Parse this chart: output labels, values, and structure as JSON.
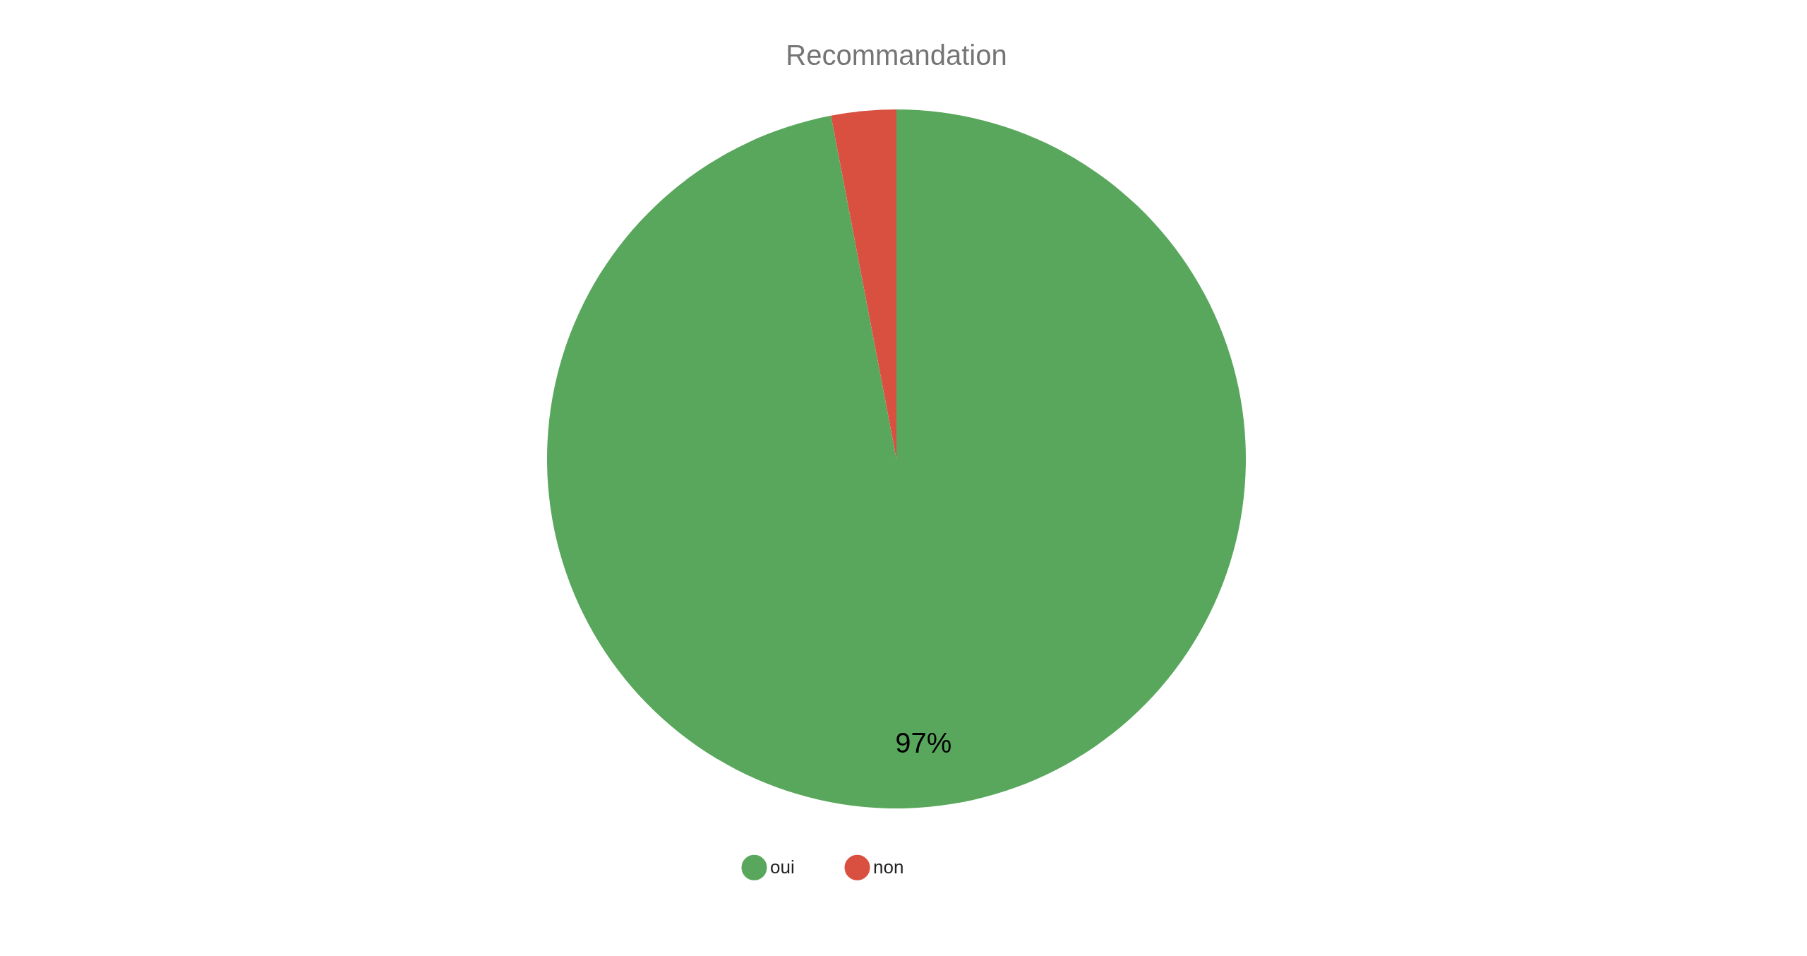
{
  "chart_data": {
    "type": "pie",
    "title": "Recommandation",
    "categories": [
      "oui",
      "non"
    ],
    "values": [
      97,
      3
    ],
    "colors": [
      "#59a75c",
      "#d95040"
    ],
    "value_labels": [
      "97%",
      null
    ],
    "legend": "bottom"
  }
}
